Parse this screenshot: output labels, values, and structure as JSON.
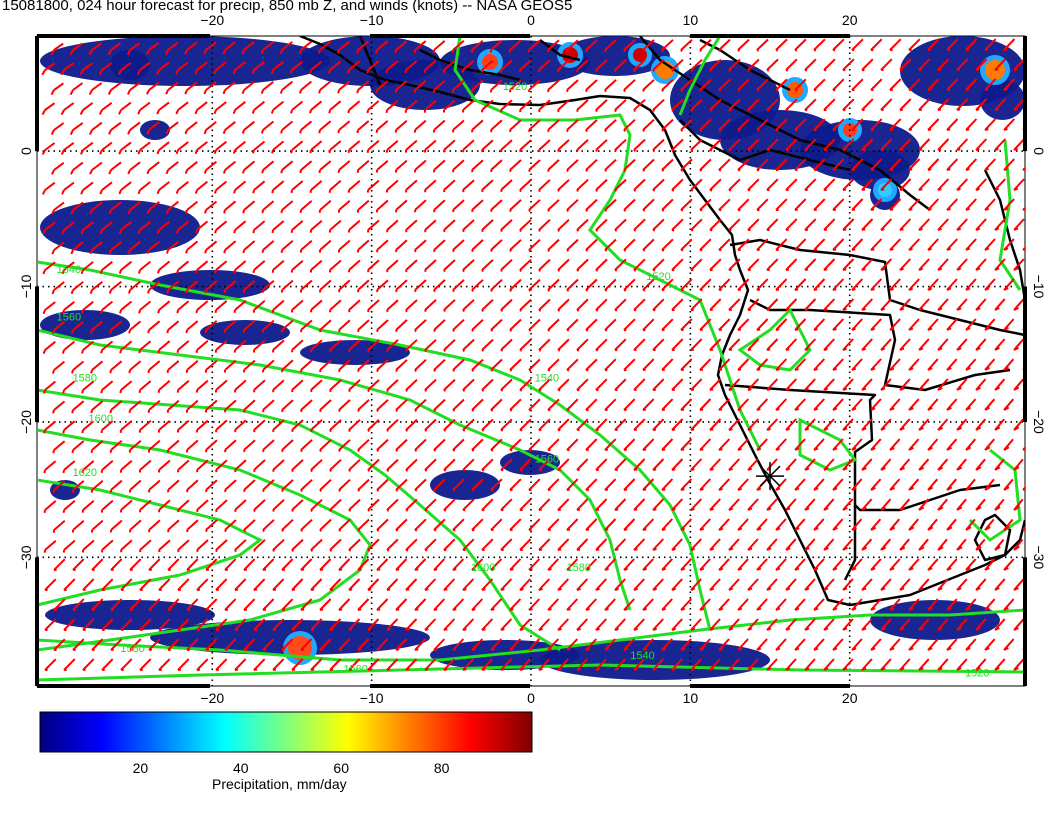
{
  "title": "15081800, 024 hour forecast for precip, 850 mb Z, and winds (knots) -- NASA GEOS5",
  "map": {
    "lon_range": [
      -31,
      31
    ],
    "lat_range": [
      -39.5,
      8.5
    ],
    "lon_ticks": [
      -20,
      -10,
      0,
      10,
      20
    ],
    "lat_ticks": [
      0,
      -10,
      -20,
      -30
    ],
    "lon_tick_labels": [
      "−20",
      "−10",
      "0",
      "10",
      "20"
    ],
    "lat_tick_labels": [
      "0",
      "−10",
      "−20",
      "−30"
    ],
    "gridlines": "dotted",
    "marker": {
      "name": "asterisk",
      "lon": 15,
      "lat": -24
    }
  },
  "contours": {
    "variable": "850 mb geopotential height",
    "color": "#22dd22",
    "labels": [
      {
        "text": "1520",
        "lon": -1,
        "lat": 4.5
      },
      {
        "text": "1520",
        "lon": 8,
        "lat": -9.5
      },
      {
        "text": "1540",
        "lon": -29,
        "lat": -9
      },
      {
        "text": "1540",
        "lon": 1,
        "lat": -17
      },
      {
        "text": "1560",
        "lon": -29,
        "lat": -12.5
      },
      {
        "text": "1560",
        "lon": 1,
        "lat": -23
      },
      {
        "text": "1580",
        "lon": -28,
        "lat": -17
      },
      {
        "text": "1580",
        "lon": 3,
        "lat": -31
      },
      {
        "text": "1580",
        "lon": -25,
        "lat": -37
      },
      {
        "text": "1600",
        "lon": -27,
        "lat": -20
      },
      {
        "text": "1600",
        "lon": -3,
        "lat": -31
      },
      {
        "text": "1620",
        "lon": -28,
        "lat": -24
      },
      {
        "text": "1540",
        "lon": 7,
        "lat": -37.5
      },
      {
        "text": "1560",
        "lon": -11,
        "lat": -38.5
      },
      {
        "text": "1520",
        "lon": 28,
        "lat": -38.8
      }
    ]
  },
  "colorbar": {
    "label": "Precipitation, mm/day",
    "ticks": [
      "20",
      "40",
      "60",
      "80"
    ],
    "tick_values": [
      20,
      40,
      60,
      80
    ],
    "range": [
      0,
      98
    ],
    "colors": [
      "#00007f",
      "#0000ff",
      "#007fff",
      "#00ffff",
      "#7fff7f",
      "#ffff00",
      "#ff7f00",
      "#ff0000",
      "#7f0000"
    ]
  },
  "colors": {
    "wind_barbs": "#ff0000",
    "coastlines": "#000000",
    "precip_base": "#0d1a8c"
  }
}
